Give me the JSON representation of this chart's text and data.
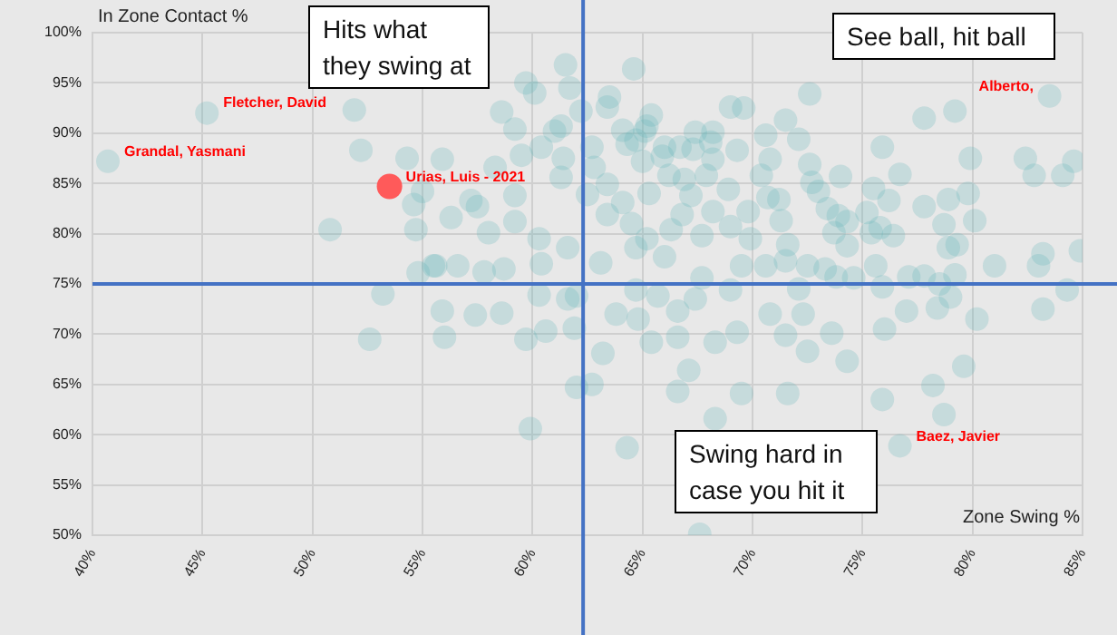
{
  "chart_data": {
    "type": "scatter",
    "xlabel": "Zone Swing %",
    "ylabel": "In Zone Contact %",
    "xlim": [
      40,
      85
    ],
    "ylim": [
      50,
      100
    ],
    "xticks": [
      {
        "value": 40,
        "label": "40%"
      },
      {
        "value": 45,
        "label": "45%"
      },
      {
        "value": 50,
        "label": "50%"
      },
      {
        "value": 55,
        "label": "55%"
      },
      {
        "value": 60,
        "label": "60%"
      },
      {
        "value": 65,
        "label": "65%"
      },
      {
        "value": 70,
        "label": "70%"
      },
      {
        "value": 75,
        "label": "75%"
      },
      {
        "value": 80,
        "label": "80%"
      },
      {
        "value": 85,
        "label": "85%"
      }
    ],
    "yticks": [
      {
        "value": 50,
        "label": "50%"
      },
      {
        "value": 55,
        "label": "55%"
      },
      {
        "value": 60,
        "label": "60%"
      },
      {
        "value": 65,
        "label": "65%"
      },
      {
        "value": 70,
        "label": "70%"
      },
      {
        "value": 75,
        "label": "75%"
      },
      {
        "value": 80,
        "label": "80%"
      },
      {
        "value": 85,
        "label": "85%"
      },
      {
        "value": 90,
        "label": "90%"
      },
      {
        "value": 95,
        "label": "95%"
      },
      {
        "value": 100,
        "label": "100%"
      }
    ],
    "grid": true,
    "legend": false,
    "marker": "circle",
    "ref_lines": [
      {
        "axis": "x",
        "value": 62.3,
        "color": "#4472c4"
      },
      {
        "axis": "y",
        "value": 75,
        "color": "#4472c4"
      }
    ],
    "annotations": [
      {
        "text": "Grandal, Yasmani",
        "x": 40.7,
        "y": 87.2
      },
      {
        "text": "Fletcher, David",
        "x": 45.2,
        "y": 92.0
      },
      {
        "text": "Urias, Luis - 2021",
        "x": 53.5,
        "y": 84.7
      },
      {
        "text": "Alberto,",
        "x": 83.5,
        "y": 93.7
      },
      {
        "text": "Baez, Javier",
        "x": 76.7,
        "y": 58.9
      },
      "Hits what they swing at",
      "See ball, hit ball",
      "Swing hard in case you hit it"
    ],
    "series": [
      {
        "color": "#5eb5b8",
        "x": [
          40.7,
          45.2,
          83.5,
          76.7,
          51.9,
          52.2,
          54.3,
          55.0,
          54.6,
          50.8,
          54.7,
          54.8,
          55.5,
          53.2,
          61.5,
          64.6,
          59.7,
          60.1,
          61.7,
          63.5,
          63.4,
          58.6,
          62.2,
          65.4,
          59.2,
          61.3,
          61.0,
          64.1,
          65.2,
          65.1,
          64.7,
          67.4,
          68.2,
          69.0,
          69.6,
          60.4,
          62.7,
          64.3,
          66.0,
          66.7,
          68.1,
          69.3,
          67.3,
          55.9,
          58.3,
          59.5,
          61.4,
          62.8,
          65.0,
          65.9,
          68.2,
          61.3,
          63.4,
          66.2,
          66.9,
          67.9,
          70.4,
          57.2,
          57.5,
          59.2,
          62.5,
          64.1,
          65.3,
          67.2,
          68.9,
          70.7,
          56.3,
          59.2,
          63.4,
          64.5,
          66.8,
          68.2,
          69.8,
          58.0,
          60.3,
          61.6,
          65.2,
          66.3,
          67.7,
          69.0,
          69.9,
          55.6,
          56.6,
          57.8,
          58.7,
          60.4,
          63.1,
          64.7,
          66.0,
          67.7,
          69.5,
          70.6,
          55.9,
          57.4,
          58.6,
          60.3,
          61.6,
          62.0,
          64.7,
          65.7,
          67.4,
          69.0,
          63.8,
          66.6,
          70.8,
          72.6,
          71.5,
          72.1,
          77.8,
          79.2,
          75.9,
          70.6,
          70.8,
          72.6,
          74.0,
          76.7,
          79.9,
          82.4,
          82.8,
          84.1,
          84.6,
          72.7,
          71.2,
          73.0,
          75.5,
          76.2,
          77.8,
          78.9,
          79.8,
          73.4,
          73.9,
          75.2,
          71.3,
          74.3,
          75.8,
          78.7,
          80.1,
          73.7,
          75.4,
          76.4,
          71.6,
          74.3,
          78.9,
          79.3,
          83.2,
          84.9,
          71.5,
          72.5,
          73.3,
          73.8,
          74.6,
          75.6,
          77.1,
          77.8,
          78.5,
          79.2,
          81.0,
          83.0,
          72.1,
          75.9,
          79.0,
          84.3,
          72.3,
          77.0,
          78.4,
          80.2,
          83.2,
          56.0,
          59.7,
          60.6,
          61.9,
          64.8,
          63.2,
          65.4,
          66.6,
          68.3,
          69.3,
          62.0,
          62.7,
          67.1,
          66.6,
          69.5,
          59.9,
          68.3,
          64.3,
          67.6,
          71.5,
          73.6,
          76.0,
          72.5,
          74.3,
          79.6,
          71.6,
          75.9,
          78.2,
          78.7,
          52.6
        ],
        "values": [
          87.2,
          92.0,
          93.7,
          58.9,
          92.3,
          88.3,
          87.5,
          84.2,
          82.9,
          80.4,
          80.4,
          76.1,
          76.8,
          74.0,
          96.8,
          96.4,
          95.0,
          94.0,
          94.5,
          93.6,
          92.6,
          92.1,
          92.2,
          91.8,
          90.4,
          90.7,
          90.2,
          90.3,
          90.7,
          90.2,
          89.3,
          90.1,
          90.1,
          92.6,
          92.5,
          88.6,
          88.6,
          88.9,
          88.6,
          88.6,
          89.1,
          88.3,
          88.4,
          87.4,
          86.6,
          87.8,
          87.5,
          86.6,
          87.2,
          87.7,
          87.4,
          85.6,
          84.9,
          85.8,
          85.4,
          85.8,
          85.8,
          83.3,
          82.7,
          83.8,
          83.9,
          83.1,
          84.0,
          83.8,
          84.4,
          83.6,
          81.6,
          81.2,
          81.9,
          81.0,
          81.9,
          82.2,
          82.2,
          80.1,
          79.5,
          78.6,
          79.5,
          80.4,
          79.8,
          80.7,
          79.5,
          76.8,
          76.8,
          76.2,
          76.5,
          77.0,
          77.1,
          78.6,
          77.7,
          75.6,
          76.8,
          76.8,
          72.3,
          71.9,
          72.1,
          73.9,
          73.5,
          73.8,
          74.4,
          73.8,
          73.5,
          74.4,
          72.0,
          72.3,
          72.0,
          93.9,
          91.3,
          89.4,
          91.5,
          92.2,
          88.6,
          89.8,
          87.4,
          86.9,
          85.7,
          85.9,
          87.5,
          87.5,
          85.8,
          85.8,
          87.2,
          85.1,
          83.4,
          84.2,
          84.5,
          83.3,
          82.7,
          83.4,
          84.0,
          82.5,
          81.8,
          82.1,
          81.3,
          81.2,
          80.6,
          80.9,
          81.3,
          80.1,
          80.1,
          79.8,
          78.9,
          78.8,
          78.6,
          78.9,
          78.0,
          78.3,
          77.3,
          76.8,
          76.5,
          75.7,
          75.6,
          76.8,
          75.7,
          75.8,
          75.0,
          75.9,
          76.8,
          76.8,
          74.5,
          74.7,
          73.7,
          74.4,
          72.0,
          72.3,
          72.6,
          71.5,
          72.5,
          69.7,
          69.5,
          70.3,
          70.6,
          71.5,
          68.1,
          69.2,
          69.7,
          69.2,
          70.2,
          64.7,
          65.0,
          66.4,
          64.3,
          64.1,
          60.6,
          61.6,
          58.7,
          50.1,
          69.9,
          70.1,
          70.5,
          68.3,
          67.3,
          66.8,
          64.1,
          63.5,
          64.9,
          62.0,
          69.5
        ]
      },
      {
        "color": "#ff5a5a",
        "x": [
          53.5
        ],
        "values": [
          84.7
        ]
      }
    ]
  }
}
